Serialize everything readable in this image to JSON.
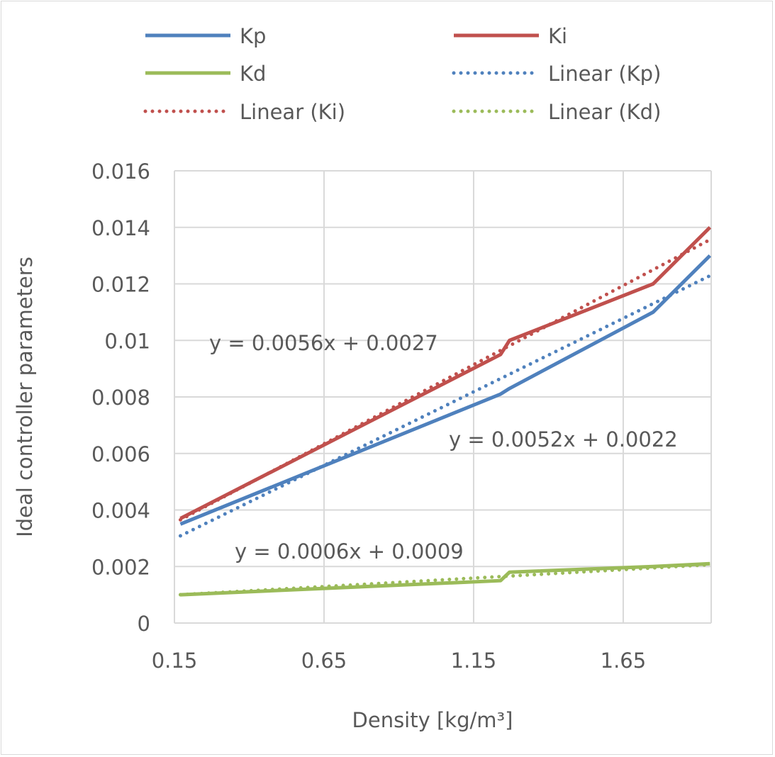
{
  "chart_data": {
    "type": "line",
    "title": "",
    "xlabel": "Density [kg/m³]",
    "ylabel": "Ideal controller parameters",
    "xlim": [
      0.15,
      1.944
    ],
    "ylim": [
      0,
      0.016
    ],
    "x_ticks": [
      "0.15",
      "0.65",
      "1.15",
      "1.65"
    ],
    "x_tick_values": [
      0.15,
      0.65,
      1.15,
      1.65
    ],
    "y_ticks": [
      "0",
      "0.002",
      "0.004",
      "0.006",
      "0.008",
      "0.01",
      "0.012",
      "0.014",
      "0.016"
    ],
    "y_tick_values": [
      0,
      0.002,
      0.004,
      0.006,
      0.008,
      0.01,
      0.012,
      0.014,
      0.016
    ],
    "grid": true,
    "legend_placement": "top",
    "series": [
      {
        "name": "Kp",
        "color": "#4f81bd",
        "style": "solid",
        "x": [
          0.17,
          1.24,
          1.27,
          1.75,
          1.94
        ],
        "values": [
          0.0035,
          0.0081,
          0.0083,
          0.011,
          0.013
        ]
      },
      {
        "name": "Ki",
        "color": "#c0504d",
        "style": "solid",
        "x": [
          0.17,
          1.24,
          1.27,
          1.75,
          1.94
        ],
        "values": [
          0.0037,
          0.0095,
          0.01,
          0.012,
          0.014
        ]
      },
      {
        "name": "Kd",
        "color": "#9bbb59",
        "style": "solid",
        "x": [
          0.17,
          1.24,
          1.27,
          1.75,
          1.94
        ],
        "values": [
          0.001,
          0.0015,
          0.0018,
          0.002,
          0.0021
        ]
      }
    ],
    "trendlines": [
      {
        "name": "Linear (Kp)",
        "color": "#4f81bd",
        "style": "dotted",
        "slope": 0.0052,
        "intercept": 0.0022,
        "equation": "y = 0.0052x + 0.0022"
      },
      {
        "name": "Linear (Ki)",
        "color": "#c0504d",
        "style": "dotted",
        "slope": 0.0056,
        "intercept": 0.0027,
        "equation": "y = 0.0056x + 0.0027"
      },
      {
        "name": "Linear (Kd)",
        "color": "#9bbb59",
        "style": "dotted",
        "slope": 0.0006,
        "intercept": 0.0009,
        "equation": "y = 0.0006x + 0.0009"
      }
    ],
    "legend": [
      "Kp",
      "Ki",
      "Kd",
      "Linear (Kp)",
      "Linear (Ki)",
      "Linear (Kd)"
    ]
  }
}
